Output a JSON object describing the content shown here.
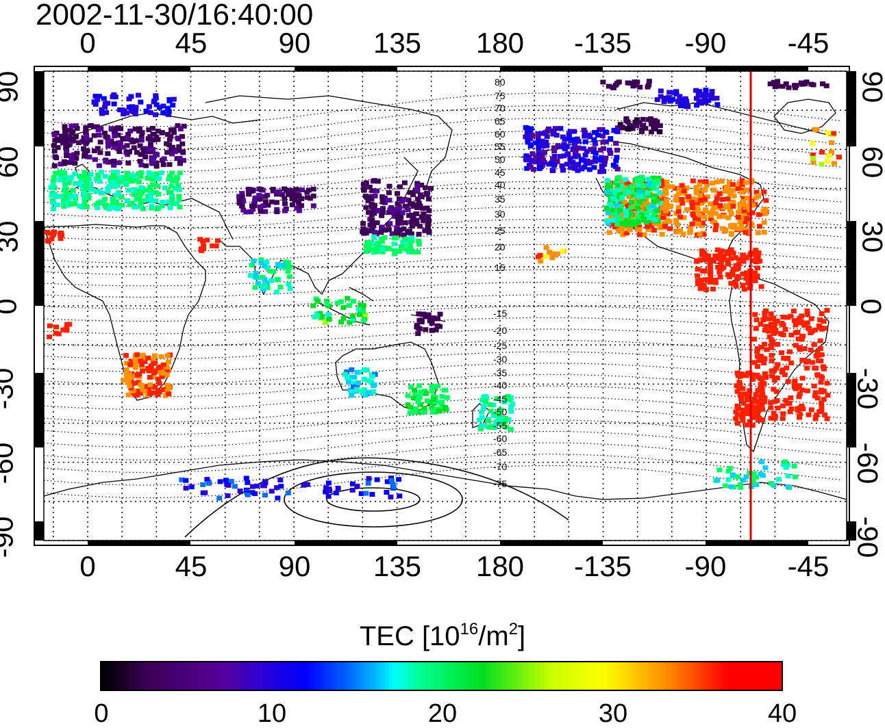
{
  "title": "2002-11-30/16:40:00",
  "lon_ticks": [
    "0",
    "45",
    "90",
    "135",
    "180",
    "-135",
    "-90",
    "-45"
  ],
  "lat_ticks": [
    "90",
    "60",
    "30",
    "0",
    "-30",
    "-60",
    "-90"
  ],
  "contour_labels_north": [
    "80",
    "75",
    "70",
    "65",
    "60",
    "55",
    "50",
    "45",
    "40",
    "35",
    "30",
    "25",
    "20",
    "15"
  ],
  "contour_labels_south": [
    "-15",
    "-20",
    "-25",
    "-30",
    "-35",
    "-40",
    "-45",
    "-50",
    "-55",
    "-60",
    "-65",
    "-70",
    "-75"
  ],
  "colorbar": {
    "title": "TEC  [10",
    "title_exp": "16",
    "title_mid": "/m",
    "title_exp2": "2",
    "title_end": "]",
    "ticks": [
      "0",
      "10",
      "20",
      "30",
      "40"
    ],
    "min": 0,
    "max": 40
  },
  "marker_line_lon": -66,
  "colors": {
    "red_marker": "#e00000",
    "high_tec": "#ff0000",
    "low_tec": "#3c0057"
  }
}
